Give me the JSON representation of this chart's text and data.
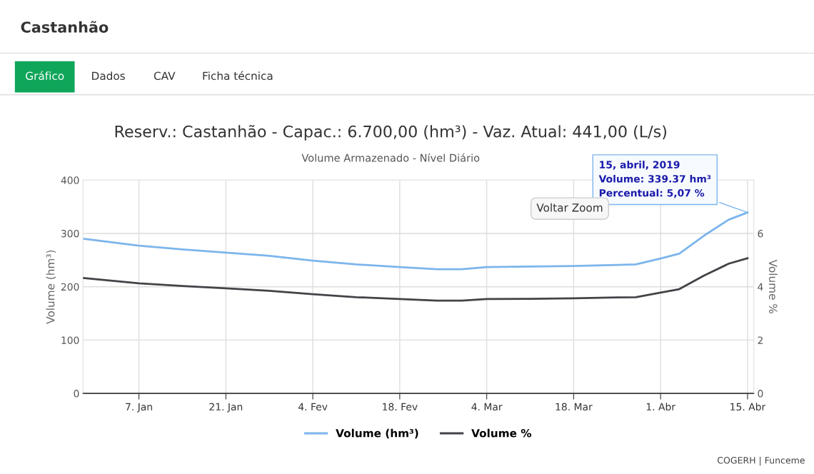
{
  "chart_data": {
    "type": "line",
    "title": "Reserv.: Castanhão - Capac.: 6.700,00 (hm³) - Vaz. Atual: 441,00 (L/s)",
    "subtitle": "Volume Armazenado - Nível Diário",
    "ylabel": "Volume (hm³)",
    "y2label": "Volume %",
    "x": [
      "2018-12-29",
      "2019-01-07",
      "2019-01-14",
      "2019-01-21",
      "2019-01-28",
      "2019-02-04",
      "2019-02-11",
      "2019-02-18",
      "2019-02-24",
      "2019-02-28",
      "2019-03-04",
      "2019-03-11",
      "2019-03-18",
      "2019-03-25",
      "2019-03-28",
      "2019-04-01",
      "2019-04-04",
      "2019-04-08",
      "2019-04-12",
      "2019-04-15"
    ],
    "series": [
      {
        "name": "Volume (hm³)",
        "color": "#7cb5ec",
        "values": [
          290,
          277,
          270,
          264,
          258,
          249,
          242,
          237,
          233,
          233,
          237,
          238,
          239,
          241,
          242,
          253,
          262,
          296,
          326,
          339.37
        ]
      },
      {
        "name": "Volume %",
        "color": "#434348",
        "axis": "y2",
        "values": [
          4.33,
          4.13,
          4.03,
          3.94,
          3.85,
          3.72,
          3.61,
          3.54,
          3.48,
          3.48,
          3.54,
          3.55,
          3.57,
          3.6,
          3.61,
          3.78,
          3.91,
          4.42,
          4.87,
          5.07
        ]
      }
    ],
    "xlim": [
      "2018-12-29",
      "2019-04-16"
    ],
    "xticks": [
      {
        "value": "2019-01-07",
        "label": "7. Jan"
      },
      {
        "value": "2019-01-21",
        "label": "21. Jan"
      },
      {
        "value": "2019-02-04",
        "label": "4. Fev"
      },
      {
        "value": "2019-02-18",
        "label": "18. Fev"
      },
      {
        "value": "2019-03-04",
        "label": "4. Mar"
      },
      {
        "value": "2019-03-18",
        "label": "18. Mar"
      },
      {
        "value": "2019-04-01",
        "label": "1. Abr"
      },
      {
        "value": "2019-04-15",
        "label": "15. Abr"
      }
    ],
    "ylim": [
      0,
      400
    ],
    "yticks": [
      0,
      100,
      200,
      300,
      400
    ],
    "y2lim": [
      0,
      8
    ],
    "y2ticks": [
      0,
      2,
      4,
      6
    ],
    "grid": true,
    "legend": "bottom",
    "annotations": [
      "Castanhão",
      "Gráfico",
      "Dados",
      "CAV",
      "Ficha técnica",
      {
        "text": "15, abril, 2019\nVolume: 339.37 hm³\nPercentual: 5,07 %",
        "x": "2019-04-15",
        "y": 339.37
      },
      "Voltar Zoom",
      "COGERH | Funceme"
    ]
  }
}
